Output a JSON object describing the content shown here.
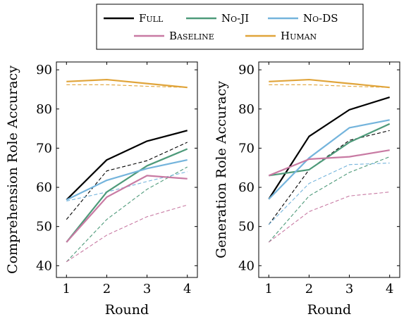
{
  "legend": {
    "entries": [
      {
        "key": "full",
        "label": "Full"
      },
      {
        "key": "noji",
        "label": "No-JI"
      },
      {
        "key": "nods",
        "label": "No-DS"
      },
      {
        "key": "baseline",
        "label": "Baseline"
      },
      {
        "key": "human",
        "label": "Human"
      }
    ]
  },
  "colors": {
    "full": "#000000",
    "noji": "#4e9a7a",
    "nods": "#74b4dc",
    "baseline": "#c87aa3",
    "human": "#e0a43a"
  },
  "chart_data": [
    {
      "type": "line",
      "title": "",
      "xlabel": "Round",
      "ylabel": "Comprehension Role Accuracy",
      "x": [
        1,
        2,
        3,
        4
      ],
      "xlim": [
        0.75,
        4.25
      ],
      "ylim": [
        37,
        92
      ],
      "yticks": [
        40,
        50,
        60,
        70,
        80,
        90
      ],
      "grid": false,
      "series": [
        {
          "key": "full",
          "style": "solid",
          "values": [
            56.8,
            67.0,
            71.8,
            74.5
          ]
        },
        {
          "key": "full",
          "style": "dashed",
          "values": [
            51.8,
            64.2,
            66.8,
            71.5
          ]
        },
        {
          "key": "noji",
          "style": "solid",
          "values": [
            46.0,
            58.8,
            65.5,
            69.8
          ]
        },
        {
          "key": "noji",
          "style": "dashed",
          "values": [
            41.0,
            51.8,
            59.5,
            65.2
          ]
        },
        {
          "key": "nods",
          "style": "solid",
          "values": [
            56.8,
            61.8,
            64.8,
            67.0
          ]
        },
        {
          "key": "nods",
          "style": "dashed",
          "values": [
            56.5,
            58.8,
            61.5,
            64.0
          ]
        },
        {
          "key": "baseline",
          "style": "solid",
          "values": [
            46.0,
            57.5,
            63.0,
            62.2
          ]
        },
        {
          "key": "baseline",
          "style": "dashed",
          "values": [
            41.0,
            47.8,
            52.5,
            55.5
          ]
        },
        {
          "key": "human",
          "style": "solid",
          "values": [
            87.0,
            87.5,
            86.5,
            85.5
          ]
        },
        {
          "key": "human",
          "style": "dashed",
          "values": [
            86.2,
            86.2,
            85.8,
            85.5
          ]
        }
      ]
    },
    {
      "type": "line",
      "title": "",
      "xlabel": "Round",
      "ylabel": "Generation Role Accuracy",
      "x": [
        1,
        2,
        3,
        4
      ],
      "xlim": [
        0.75,
        4.25
      ],
      "ylim": [
        37,
        92
      ],
      "yticks": [
        40,
        50,
        60,
        70,
        80,
        90
      ],
      "grid": false,
      "series": [
        {
          "key": "full",
          "style": "solid",
          "values": [
            57.0,
            73.0,
            79.8,
            83.0
          ]
        },
        {
          "key": "full",
          "style": "dashed",
          "values": [
            50.5,
            64.5,
            72.0,
            74.5
          ]
        },
        {
          "key": "noji",
          "style": "solid",
          "values": [
            63.0,
            64.5,
            71.5,
            76.2
          ]
        },
        {
          "key": "noji",
          "style": "dashed",
          "values": [
            46.0,
            57.8,
            63.8,
            67.8
          ]
        },
        {
          "key": "nods",
          "style": "solid",
          "values": [
            57.0,
            67.5,
            75.2,
            77.2
          ]
        },
        {
          "key": "nods",
          "style": "dashed",
          "values": [
            50.5,
            61.0,
            65.8,
            66.2
          ]
        },
        {
          "key": "baseline",
          "style": "solid",
          "values": [
            63.0,
            67.2,
            67.8,
            69.5
          ]
        },
        {
          "key": "baseline",
          "style": "dashed",
          "values": [
            46.0,
            53.8,
            57.8,
            58.8
          ]
        },
        {
          "key": "human",
          "style": "solid",
          "values": [
            87.0,
            87.5,
            86.5,
            85.5
          ]
        },
        {
          "key": "human",
          "style": "dashed",
          "values": [
            86.2,
            86.2,
            85.8,
            85.5
          ]
        }
      ]
    }
  ]
}
